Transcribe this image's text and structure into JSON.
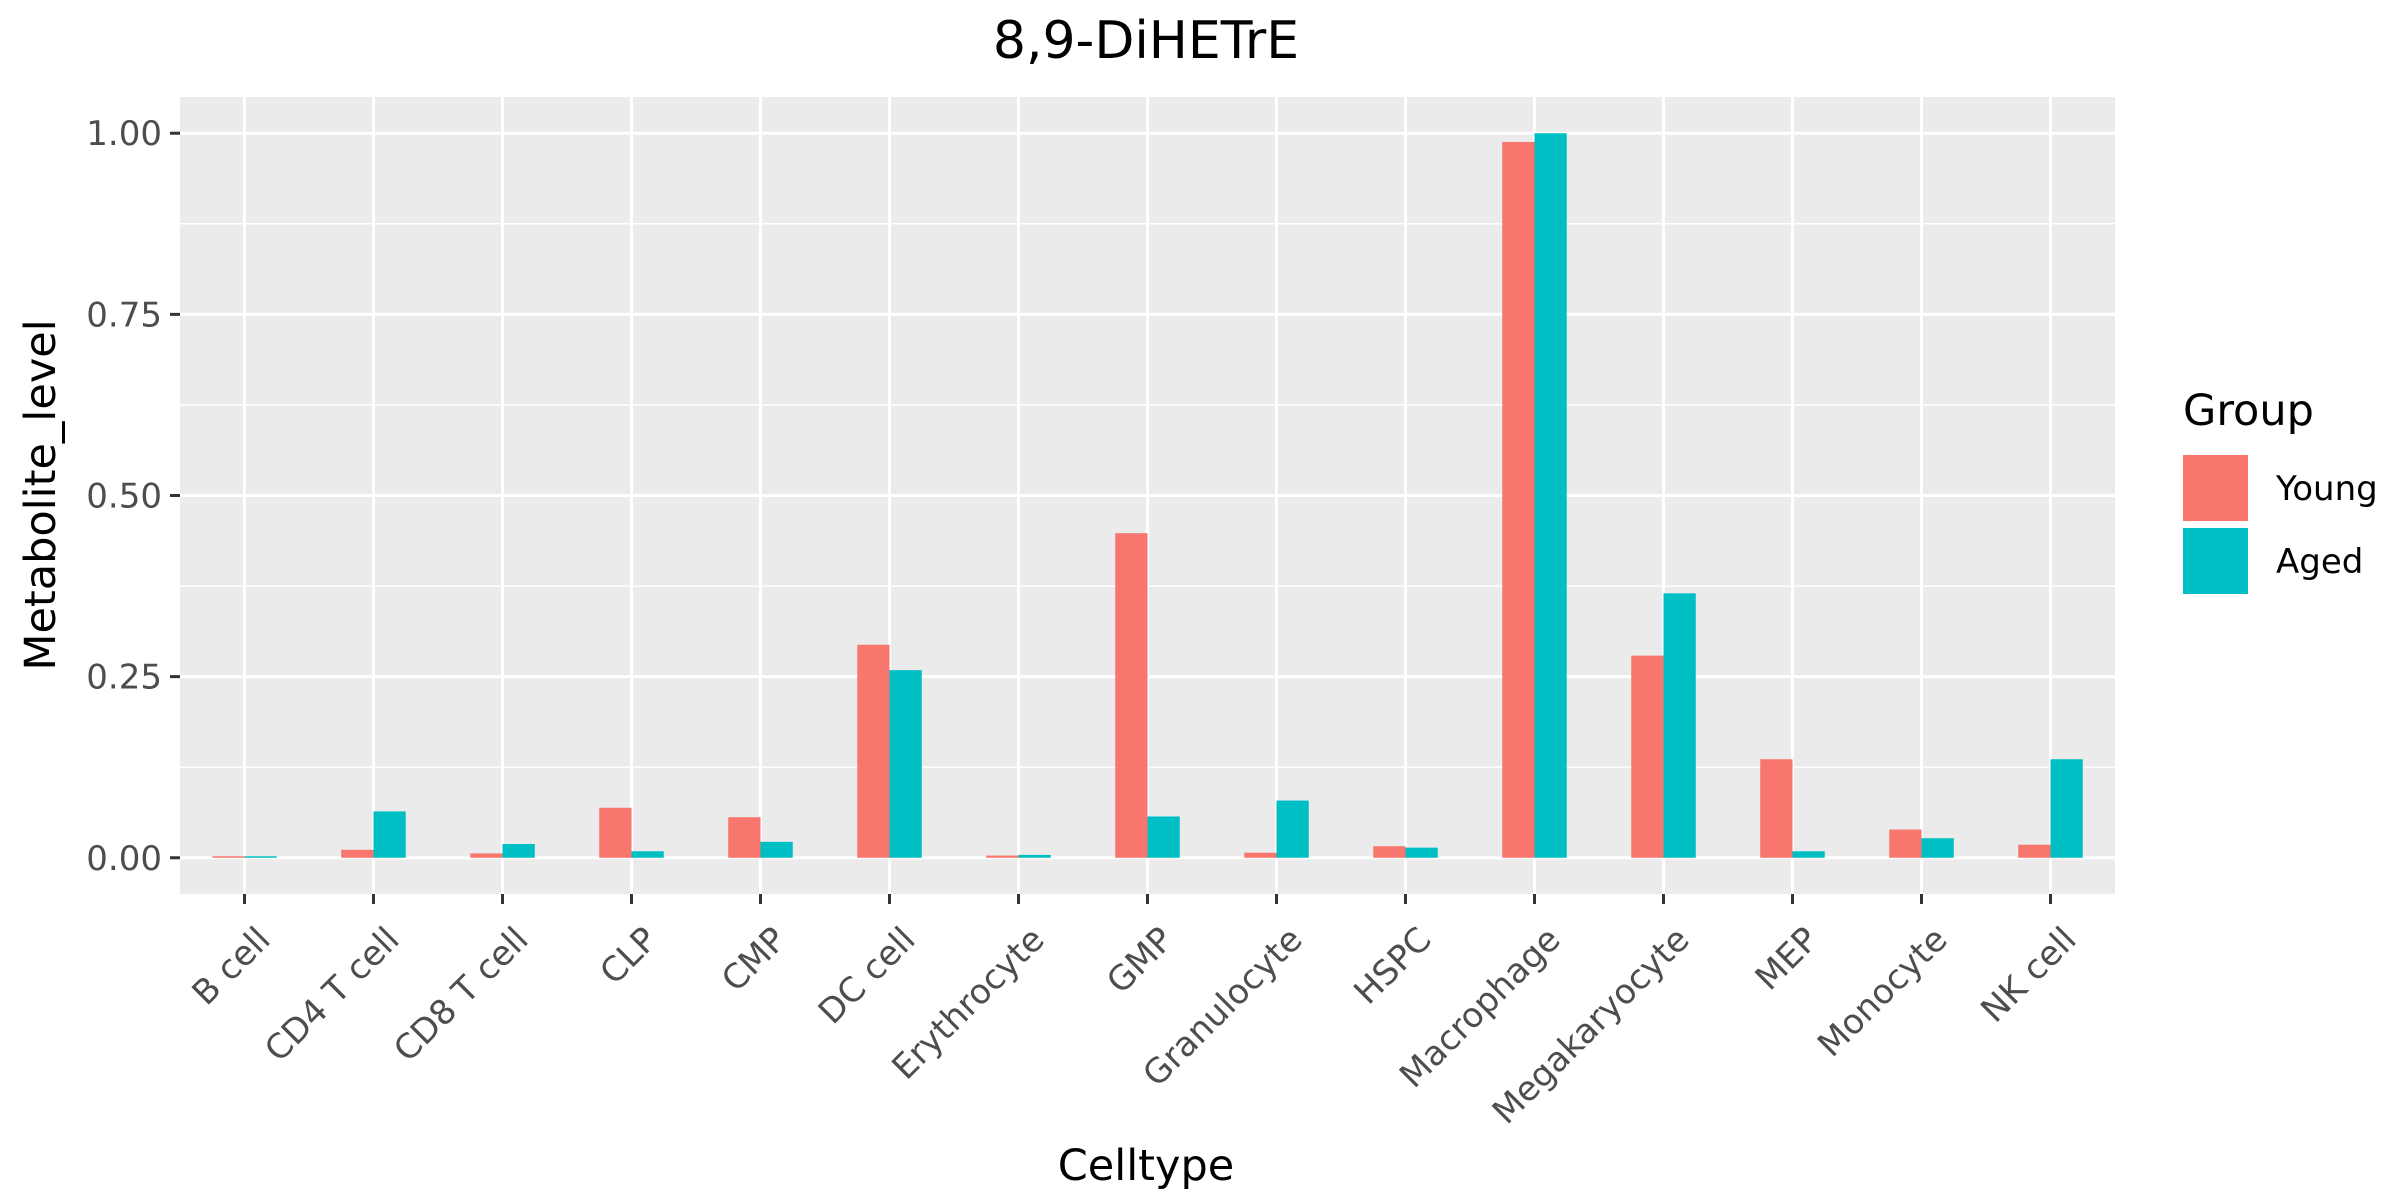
{
  "chart_data": {
    "type": "bar",
    "title": "8,9-DiHETrE",
    "xlabel": "Celltype",
    "ylabel": "Metabolite_level",
    "ylim": [
      -0.05,
      1.05
    ],
    "yticks": [
      0.0,
      0.25,
      0.5,
      0.75,
      1.0
    ],
    "ytick_labels": [
      "0.00",
      "0.25",
      "0.50",
      "0.75",
      "1.00"
    ],
    "grid": true,
    "legend_position": "right",
    "legend_title": "Group",
    "categories": [
      "B cell",
      "CD4 T cell",
      "CD8 T cell",
      "CLP",
      "CMP",
      "DC cell",
      "Erythrocyte",
      "GMP",
      "Granulocyte",
      "HSPC",
      "Macrophage",
      "Megakaryocyte",
      "MEP",
      "Monocyte",
      "NK cell"
    ],
    "series": [
      {
        "name": "Young",
        "color": "#F8766D",
        "values": [
          0.0,
          0.011,
          0.006,
          0.069,
          0.056,
          0.294,
          0.003,
          0.448,
          0.007,
          0.016,
          0.988,
          0.279,
          0.136,
          0.039,
          0.018
        ]
      },
      {
        "name": "Aged",
        "color": "#00BFC4",
        "values": [
          0.001,
          0.064,
          0.019,
          0.009,
          0.022,
          0.259,
          0.004,
          0.057,
          0.079,
          0.014,
          1.0,
          0.365,
          0.009,
          0.027,
          0.136
        ]
      }
    ],
    "panel_background": "#EBEBEB",
    "gridline_color": "#FFFFFF"
  }
}
